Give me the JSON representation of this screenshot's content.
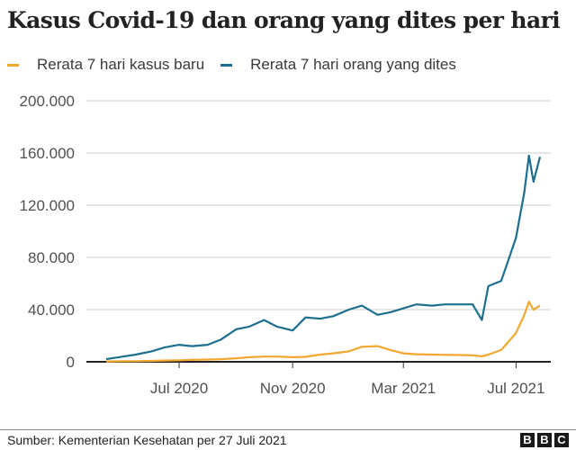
{
  "header": {
    "title": "Kasus Covid-19 dan orang yang dites per hari"
  },
  "legend": [
    {
      "label": "Rerata 7 hari kasus baru",
      "color": "#f2a72e"
    },
    {
      "label": "Rerata 7 hari orang yang dites",
      "color": "#1d6f8f"
    }
  ],
  "footer": {
    "source": "Sumber: Kementerian Kesehatan per 27 Juli 2021",
    "logo": [
      "B",
      "B",
      "C"
    ]
  },
  "chart_data": {
    "type": "line",
    "title": "Kasus Covid-19 dan orang yang dites per hari",
    "xlabel": "",
    "ylabel": "",
    "ylim": [
      0,
      200000
    ],
    "yticks": [
      0,
      40000,
      80000,
      120000,
      160000,
      200000
    ],
    "ytick_labels": [
      "0",
      "40.000",
      "80.000",
      "120.000",
      "160.000",
      "200.000"
    ],
    "xticks": [
      "Jul 2020",
      "Nov 2020",
      "Mar 2021",
      "Jul 2021"
    ],
    "grid": "horizontal",
    "legend_position": "top",
    "x_range": [
      "2020-04-13",
      "2021-07-27"
    ],
    "x": [
      "2020-04-13",
      "2020-05-01",
      "2020-05-15",
      "2020-06-01",
      "2020-06-15",
      "2020-07-01",
      "2020-07-15",
      "2020-08-01",
      "2020-08-15",
      "2020-09-01",
      "2020-09-15",
      "2020-10-01",
      "2020-10-15",
      "2020-11-01",
      "2020-11-15",
      "2020-12-01",
      "2020-12-15",
      "2021-01-01",
      "2021-01-15",
      "2021-02-01",
      "2021-02-15",
      "2021-03-01",
      "2021-03-15",
      "2021-04-01",
      "2021-04-15",
      "2021-05-01",
      "2021-05-15",
      "2021-05-25",
      "2021-06-01",
      "2021-06-15",
      "2021-07-01",
      "2021-07-10",
      "2021-07-15",
      "2021-07-20",
      "2021-07-27"
    ],
    "series": [
      {
        "name": "Rerata 7 hari kasus baru",
        "color": "#f2a72e",
        "values": [
          300,
          400,
          500,
          700,
          1000,
          1200,
          1500,
          1700,
          2000,
          2700,
          3500,
          4000,
          4000,
          3500,
          3800,
          5500,
          6500,
          8000,
          11500,
          12000,
          9000,
          6500,
          5800,
          5500,
          5300,
          5200,
          5000,
          4200,
          5500,
          9000,
          22000,
          36000,
          46000,
          40000,
          43000
        ]
      },
      {
        "name": "Rerata 7 hari orang yang dites",
        "color": "#1d6f8f",
        "values": [
          2000,
          4000,
          5500,
          8000,
          11000,
          13000,
          12000,
          13000,
          17000,
          25000,
          27000,
          32000,
          27000,
          24000,
          34000,
          33000,
          35000,
          40000,
          43000,
          36000,
          38000,
          41000,
          44000,
          43000,
          44000,
          44000,
          44000,
          32000,
          58000,
          62000,
          95000,
          130000,
          158000,
          138000,
          157000
        ]
      }
    ]
  }
}
